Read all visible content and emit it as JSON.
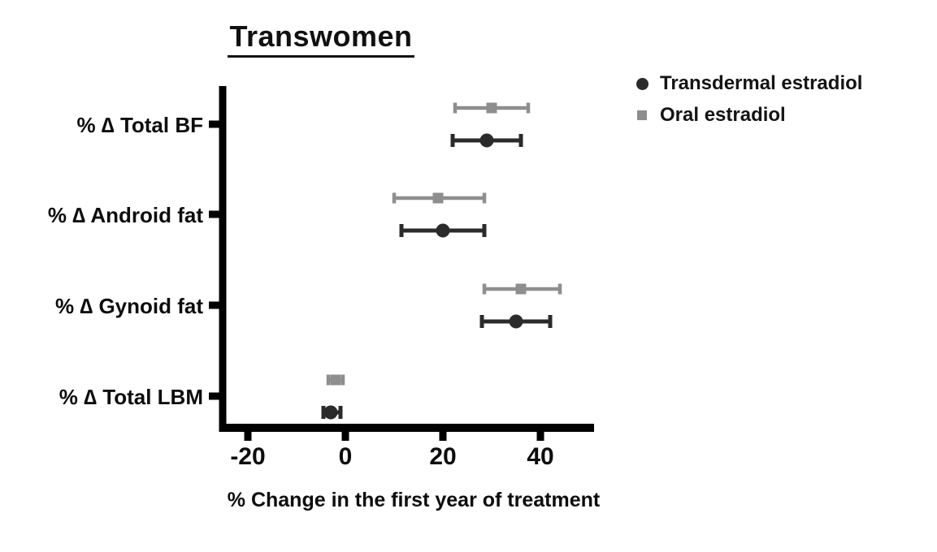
{
  "chart_data": {
    "type": "scatter",
    "subtype": "horizontal_dot_plot_with_error_bars",
    "title": "Transwomen",
    "xlabel": "% Change in the first year of treatment",
    "categories": [
      "% ∆ Total BF",
      "% ∆ Android fat",
      "% ∆ Gynoid fat",
      "% ∆ Total LBM"
    ],
    "series": [
      {
        "name": "Oral estradiol",
        "marker": "square",
        "color": "#8e8e8e",
        "values": [
          30,
          19,
          36,
          -2
        ],
        "ci_low": [
          22.5,
          10,
          28.5,
          -3.5
        ],
        "ci_high": [
          37.5,
          28.5,
          44,
          -0.5
        ]
      },
      {
        "name": "Transdermal estradiol",
        "marker": "circle",
        "color": "#2b2b2b",
        "values": [
          29,
          20,
          35,
          -3
        ],
        "ci_low": [
          22,
          11.5,
          28,
          -4.5
        ],
        "ci_high": [
          36,
          28.5,
          42,
          -1
        ]
      }
    ],
    "xticks": [
      -20,
      0,
      20,
      40
    ],
    "xlim": [
      -25,
      51
    ],
    "grid": false,
    "legend_position": "top-right",
    "row_order_within_category": [
      "Oral estradiol",
      "Transdermal estradiol"
    ]
  },
  "colors": {
    "axis": "#000000",
    "text": "#111111",
    "background": "#ffffff"
  }
}
